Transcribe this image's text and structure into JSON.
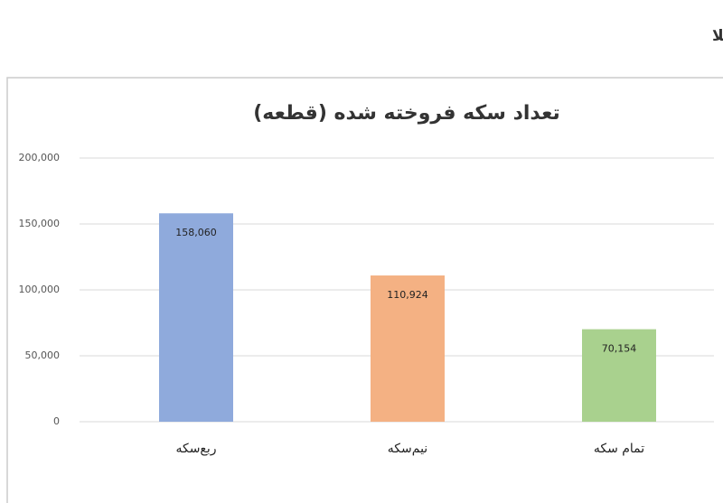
{
  "page_title": "تعداد قطعات سکه فروخته شده در مرحله اول پیش فروش سکه طلا",
  "chart_data": {
    "type": "bar",
    "title": "تعداد سکه فروخته شده (قطعه)",
    "categories": [
      "ربع‌سکه",
      "نیم‌سکه",
      "تمام سکه"
    ],
    "values": [
      158060,
      110924,
      70154
    ],
    "value_labels": [
      "158,060",
      "110,924",
      "70,154"
    ],
    "colors": [
      "#8faadc",
      "#f4b183",
      "#a9d18e"
    ],
    "ylim": [
      0,
      200000
    ],
    "yticks": [
      0,
      {
        "value": 50000,
        "label": "50,000"
      },
      {
        "value": 100000,
        "label": "100,000"
      },
      {
        "value": 150000,
        "label": "150,000"
      },
      {
        "value": 200000,
        "label": "200,000"
      }
    ],
    "grid": true
  }
}
